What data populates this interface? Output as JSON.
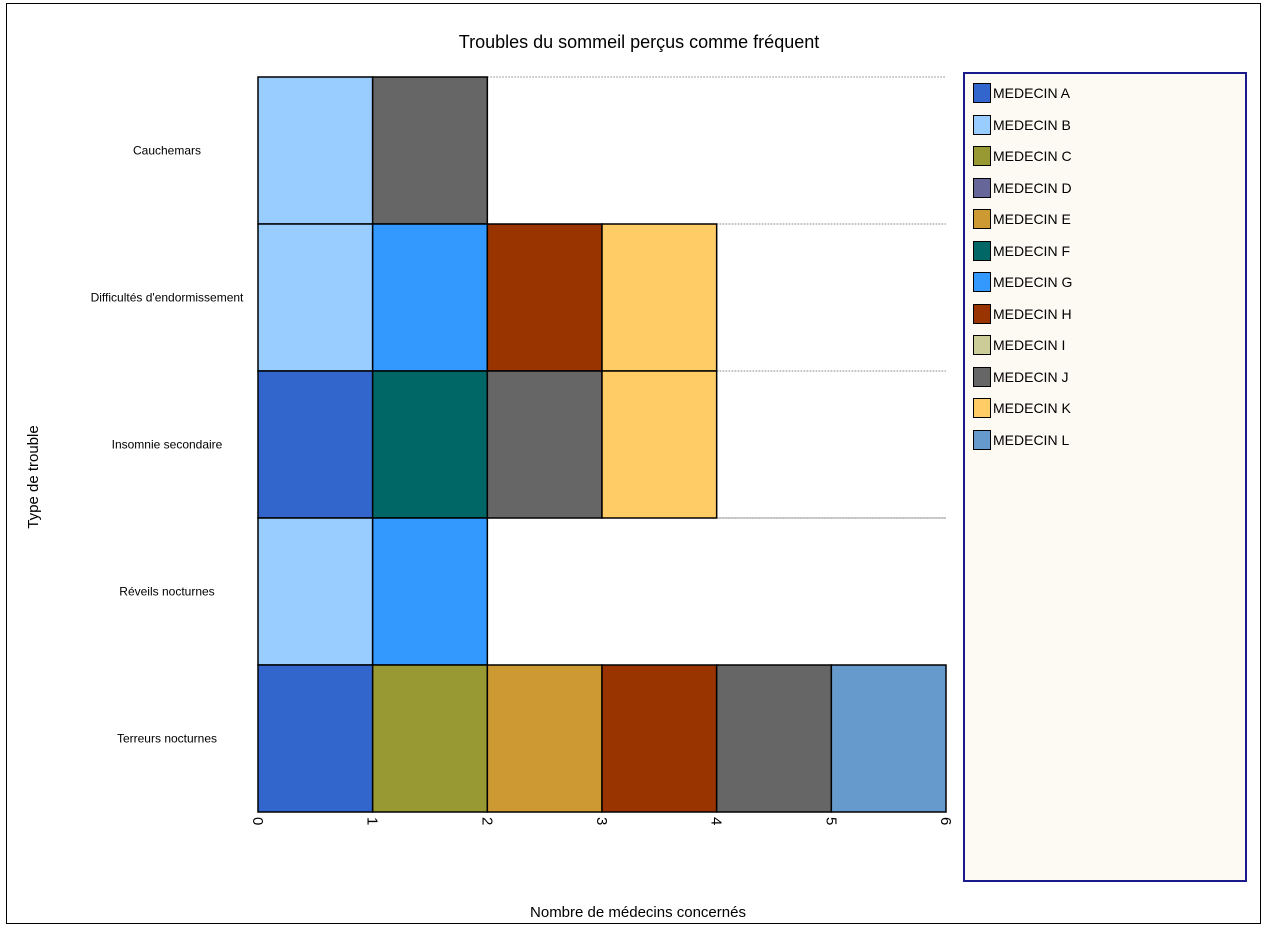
{
  "chart_data": {
    "type": "bar",
    "orientation": "horizontal-stacked",
    "title": "Troubles du sommeil perçus comme fréquent",
    "xlabel": "Nombre de médecins concernés",
    "ylabel": "Type de trouble",
    "xlim": [
      0,
      6
    ],
    "xticks": [
      "0",
      "1",
      "2",
      "3",
      "4",
      "5",
      "6"
    ],
    "categories": [
      "Cauchemars",
      "Difficultés d'endormissement",
      "Insomnie secondaire",
      "Réveils nocturnes",
      "Terreurs nocturnes"
    ],
    "series": [
      {
        "name": "MEDECIN A",
        "color": "#3366cc",
        "values": [
          0,
          0,
          1,
          0,
          1
        ]
      },
      {
        "name": "MEDECIN B",
        "color": "#99ccff",
        "values": [
          1,
          1,
          0,
          1,
          0
        ]
      },
      {
        "name": "MEDECIN C",
        "color": "#999933",
        "values": [
          0,
          0,
          0,
          0,
          1
        ]
      },
      {
        "name": "MEDECIN D",
        "color": "#666699",
        "values": [
          0,
          0,
          0,
          0,
          0
        ]
      },
      {
        "name": "MEDECIN E",
        "color": "#cc9933",
        "values": [
          0,
          0,
          0,
          0,
          1
        ]
      },
      {
        "name": "MEDECIN F",
        "color": "#006666",
        "values": [
          0,
          0,
          1,
          0,
          0
        ]
      },
      {
        "name": "MEDECIN G",
        "color": "#3399ff",
        "values": [
          0,
          1,
          0,
          1,
          0
        ]
      },
      {
        "name": "MEDECIN H",
        "color": "#993300",
        "values": [
          0,
          1,
          0,
          0,
          1
        ]
      },
      {
        "name": "MEDECIN I",
        "color": "#cccc99",
        "values": [
          0,
          0,
          0,
          0,
          0
        ]
      },
      {
        "name": "MEDECIN J",
        "color": "#666666",
        "values": [
          1,
          0,
          1,
          0,
          1
        ]
      },
      {
        "name": "MEDECIN K",
        "color": "#ffcc66",
        "values": [
          0,
          1,
          1,
          0,
          0
        ]
      },
      {
        "name": "MEDECIN L",
        "color": "#6699cc",
        "values": [
          0,
          0,
          0,
          0,
          1
        ]
      }
    ],
    "grid": "dotted horizontal lines between categories",
    "legend_position": "right"
  }
}
